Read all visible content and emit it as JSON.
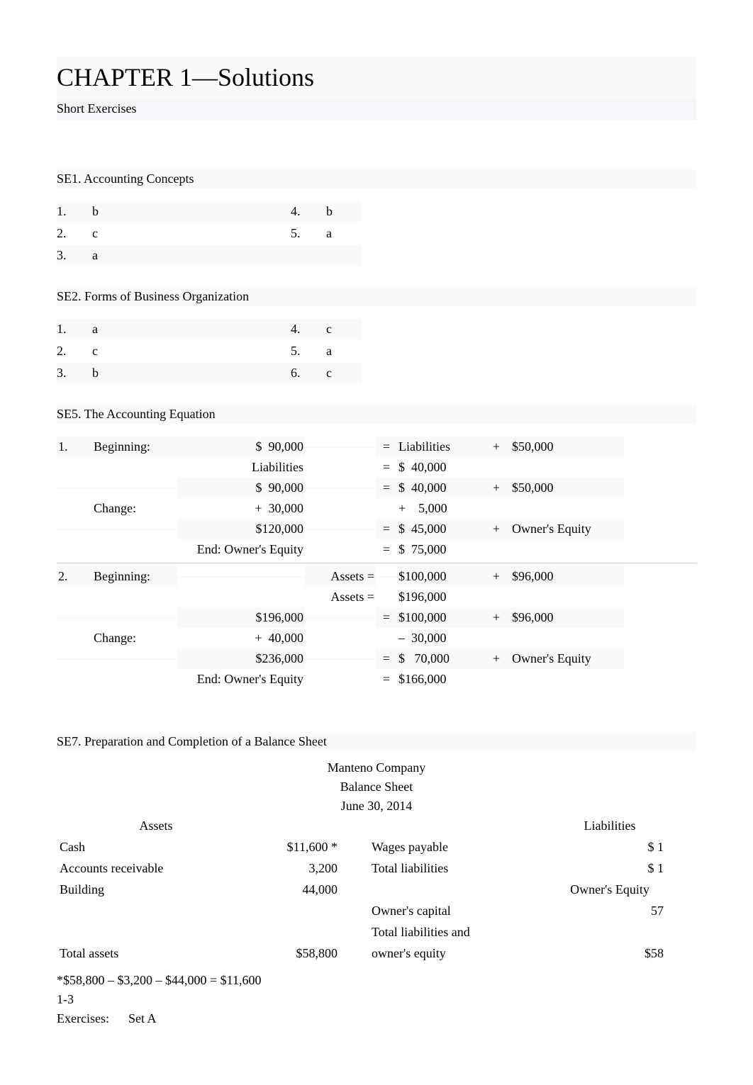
{
  "title": "CHAPTER 1—Solutions",
  "subtitle": "Short Exercises",
  "se1": {
    "label": "SE1.  Accounting Concepts",
    "items": [
      {
        "n": "1.",
        "a": "b",
        "n2": "4.",
        "a2": "b"
      },
      {
        "n": "2.",
        "a": "c",
        "n2": "5.",
        "a2": "a"
      },
      {
        "n": "3.",
        "a": "a",
        "n2": "",
        "a2": ""
      }
    ]
  },
  "se2": {
    "label": "SE2.  Forms of Business Organization",
    "items": [
      {
        "n": "1.",
        "a": "a",
        "n2": "4.",
        "a2": "c"
      },
      {
        "n": "2.",
        "a": "c",
        "n2": "5.",
        "a2": "a"
      },
      {
        "n": "3.",
        "a": "b",
        "n2": "6.",
        "a2": "c"
      }
    ]
  },
  "se5": {
    "label": "SE5.  The Accounting Equation",
    "p1": {
      "num": "1.",
      "rows": [
        {
          "c1": "Beginning:",
          "c2": "$  90,000",
          "c3": "",
          "eq": "=",
          "c4": "Liabilities",
          "op": "+",
          "c5": "$50,000"
        },
        {
          "c1": "",
          "c2": "Liabilities",
          "c3": "",
          "eq": "=",
          "c4": "$  40,000",
          "op": "",
          "c5": ""
        },
        {
          "c1": "",
          "c2": "$  90,000",
          "c3": "",
          "eq": "=",
          "c4": "$  40,000",
          "op": "+",
          "c5": "$50,000"
        },
        {
          "c1": "Change:",
          "c2": "+  30,000",
          "c3": "",
          "eq": "",
          "c4": "+    5,000",
          "op": "",
          "c5": ""
        },
        {
          "c1": "",
          "c2": "$120,000",
          "c3": "",
          "eq": "=",
          "c4": "$  45,000",
          "op": "+",
          "c5": "Owner's Equity"
        },
        {
          "c1": "",
          "c2": "End: Owner's Equity",
          "c3": "",
          "eq": "=",
          "c4": "$  75,000",
          "op": "",
          "c5": ""
        }
      ]
    },
    "p2": {
      "num": "2.",
      "rows": [
        {
          "c1": "Beginning:",
          "c2": "",
          "c3": "Assets =",
          "eq": "",
          "c4": "$100,000",
          "op": "+",
          "c5": "$96,000"
        },
        {
          "c1": "",
          "c2": "",
          "c3": "Assets =",
          "eq": "",
          "c4": "$196,000",
          "op": "",
          "c5": ""
        },
        {
          "c1": "",
          "c2": "$196,000",
          "c3": "",
          "eq": "=",
          "c4": "$100,000",
          "op": "+",
          "c5": "$96,000"
        },
        {
          "c1": "Change:",
          "c2": "+  40,000",
          "c3": "",
          "eq": "",
          "c4": "–  30,000",
          "op": "",
          "c5": ""
        },
        {
          "c1": "",
          "c2": "$236,000",
          "c3": "",
          "eq": "=",
          "c4": "$   70,000",
          "op": "+",
          "c5": "Owner's Equity"
        },
        {
          "c1": "",
          "c2": "End: Owner's Equity",
          "c3": "",
          "eq": "=",
          "c4": "$166,000",
          "op": "",
          "c5": ""
        }
      ]
    }
  },
  "se7": {
    "label": "SE7.  Preparation and Completion of a Balance Sheet",
    "company": "Manteno Company",
    "doc": "Balance Sheet",
    "date": "June 30, 2014",
    "assets_head": "Assets",
    "liab_head": "Liabilities",
    "oe_head": "Owner's Equity",
    "rows_left": [
      {
        "label": "Cash",
        "amt": "$11,600 *"
      },
      {
        "label": "Accounts receivable",
        "amt": "3,200"
      },
      {
        "label": "Building",
        "amt": "  44,000"
      }
    ],
    "rows_right": [
      {
        "label": "Wages payable",
        "amt": "$  1"
      },
      {
        "label": "Total liabilities",
        "amt": "$  1"
      },
      {
        "label": "",
        "amt": ""
      },
      {
        "label": "Owner's capital",
        "amt": "57"
      },
      {
        "label": "Total liabilities and",
        "amt": ""
      }
    ],
    "total_assets_label": "Total assets",
    "total_assets": "$58,800",
    "total_right_label": "owner's equity",
    "total_right": "$58",
    "note": "*$58,800 – $3,200 – $44,000 = $11,600",
    "page": "1-3",
    "exercises": "Exercises:",
    "set": "Set A"
  }
}
